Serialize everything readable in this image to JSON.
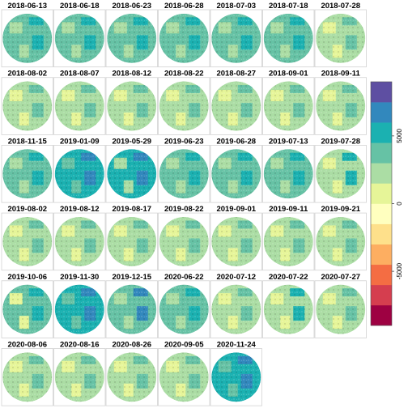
{
  "chart_data": {
    "type": "heatmap",
    "title": "",
    "panel_columns": 7,
    "panels": [
      {
        "date": "2018-06-13",
        "value": 3900
      },
      {
        "date": "2018-06-18",
        "value": 3700
      },
      {
        "date": "2018-06-23",
        "value": 3600
      },
      {
        "date": "2018-06-28",
        "value": 3500
      },
      {
        "date": "2018-07-03",
        "value": 3400
      },
      {
        "date": "2018-07-18",
        "value": 3200
      },
      {
        "date": "2018-07-28",
        "value": 2700
      },
      {
        "date": "2018-08-02",
        "value": 2300
      },
      {
        "date": "2018-08-07",
        "value": 1900
      },
      {
        "date": "2018-08-12",
        "value": 2100
      },
      {
        "date": "2018-08-22",
        "value": 2200
      },
      {
        "date": "2018-08-27",
        "value": 2400
      },
      {
        "date": "2018-09-01",
        "value": 2800
      },
      {
        "date": "2018-09-11",
        "value": 2600
      },
      {
        "date": "2018-11-15",
        "value": 3800
      },
      {
        "date": "2019-01-09",
        "value": 5600
      },
      {
        "date": "2019-05-29",
        "value": 4500
      },
      {
        "date": "2019-06-23",
        "value": 4300
      },
      {
        "date": "2019-06-28",
        "value": 3300
      },
      {
        "date": "2019-07-13",
        "value": 3600
      },
      {
        "date": "2019-07-28",
        "value": 2900
      },
      {
        "date": "2019-08-02",
        "value": 2500
      },
      {
        "date": "2019-08-12",
        "value": 2300
      },
      {
        "date": "2019-08-17",
        "value": 2100
      },
      {
        "date": "2019-08-22",
        "value": 2000
      },
      {
        "date": "2019-09-01",
        "value": 1800
      },
      {
        "date": "2019-09-11",
        "value": 2200
      },
      {
        "date": "2019-09-21",
        "value": 1900
      },
      {
        "date": "2019-10-06",
        "value": 3000
      },
      {
        "date": "2019-11-30",
        "value": 5300
      },
      {
        "date": "2019-12-15",
        "value": 4400
      },
      {
        "date": "2020-06-22",
        "value": 4200
      },
      {
        "date": "2020-07-12",
        "value": 2700
      },
      {
        "date": "2020-07-22",
        "value": 2900
      },
      {
        "date": "2020-07-27",
        "value": 2600
      },
      {
        "date": "2020-08-06",
        "value": 1900
      },
      {
        "date": "2020-08-16",
        "value": 1800
      },
      {
        "date": "2020-08-26",
        "value": 2000
      },
      {
        "date": "2020-09-05",
        "value": 1700
      },
      {
        "date": "2020-11-24",
        "value": 5000
      }
    ],
    "colorbar": {
      "range": [
        -9000,
        9000
      ],
      "ticks": [
        -5000,
        0,
        5000
      ],
      "colors": [
        "#9E0142",
        "#D53E4F",
        "#F46D43",
        "#FDAE61",
        "#FEE08B",
        "#FFFFBF",
        "#E6F598",
        "#ABDDA4",
        "#66C2A5",
        "#1BB1B1",
        "#3288BD",
        "#5E4FA2"
      ],
      "placement": "right"
    }
  }
}
